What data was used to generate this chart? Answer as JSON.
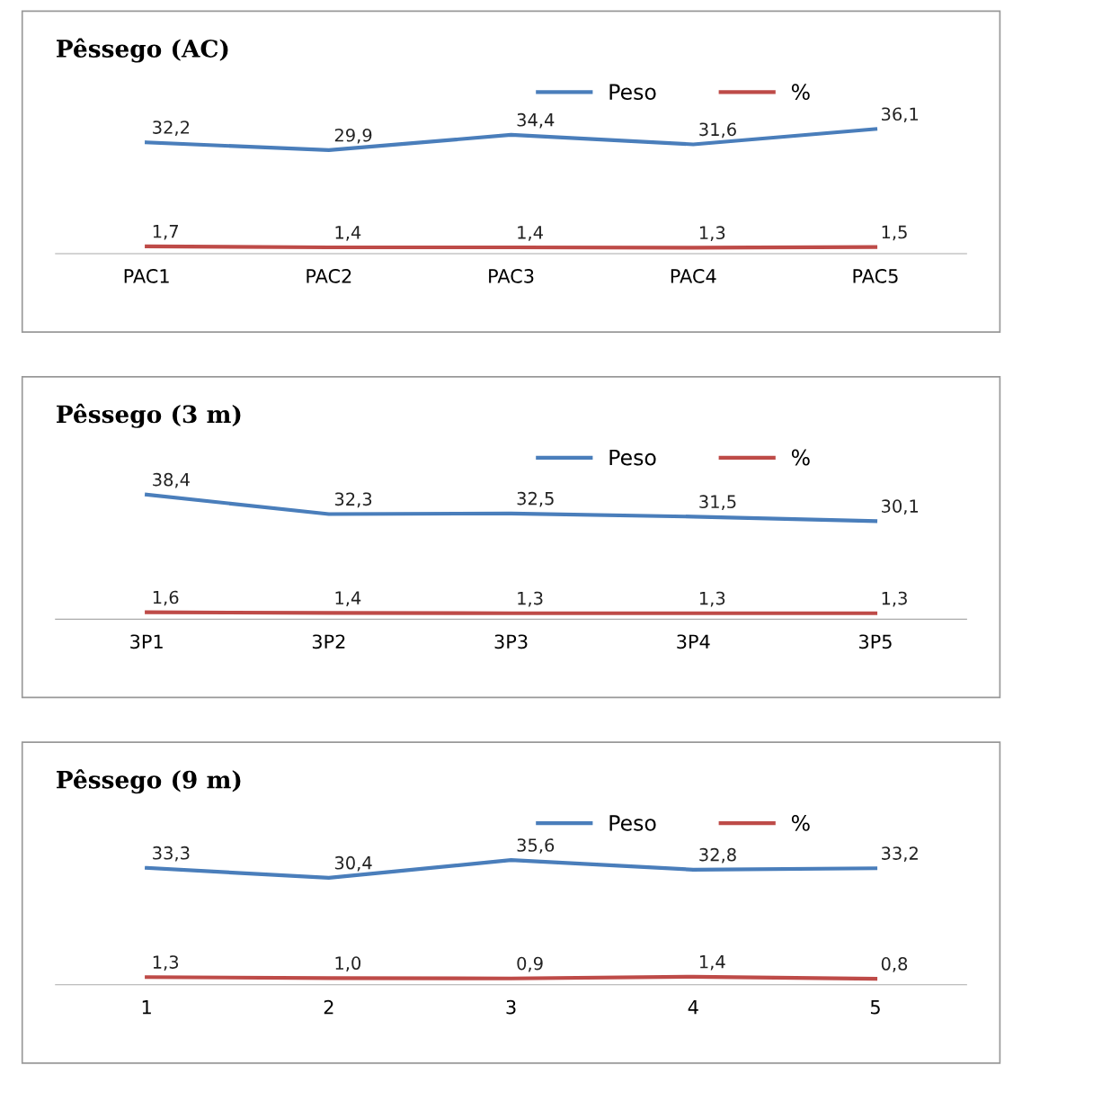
{
  "chart_data": [
    {
      "type": "line",
      "title": "Pêssego (AC)",
      "categories": [
        "PAC1",
        "PAC2",
        "PAC3",
        "PAC4",
        "PAC5"
      ],
      "legend": "top right",
      "grid": false,
      "tick_labels": "x",
      "marker": "none",
      "line_style": "solid",
      "series": [
        {
          "name": "Peso",
          "color": "#4a7ebb",
          "values": [
            32.2,
            29.9,
            34.4,
            31.6,
            36.1
          ],
          "value_labels": [
            "32,2",
            "29,9",
            "34,4",
            "31,6",
            "36,1"
          ]
        },
        {
          "name": "%",
          "color": "#be4b48",
          "values": [
            1.7,
            1.4,
            1.4,
            1.3,
            1.5
          ],
          "value_labels": [
            "1,7",
            "1,4",
            "1,4",
            "1,3",
            "1,5"
          ]
        }
      ]
    },
    {
      "type": "line",
      "title": "Pêssego (3 m)",
      "categories": [
        "3P1",
        "3P2",
        "3P3",
        "3P4",
        "3P5"
      ],
      "legend": "top right",
      "grid": false,
      "tick_labels": "x",
      "marker": "none",
      "line_style": "solid",
      "series": [
        {
          "name": "Peso",
          "color": "#4a7ebb",
          "values": [
            38.4,
            32.3,
            32.5,
            31.5,
            30.1
          ],
          "value_labels": [
            "38,4",
            "32,3",
            "32,5",
            "31,5",
            "30,1"
          ]
        },
        {
          "name": "%",
          "color": "#be4b48",
          "values": [
            1.6,
            1.4,
            1.3,
            1.3,
            1.3
          ],
          "value_labels": [
            "1,6",
            "1,4",
            "1,3",
            "1,3",
            "1,3"
          ]
        }
      ]
    },
    {
      "type": "line",
      "title": "Pêssego (9 m)",
      "categories": [
        "1",
        "2",
        "3",
        "4",
        "5"
      ],
      "legend": "top right",
      "grid": false,
      "tick_labels": "x",
      "marker": "none",
      "line_style": "solid",
      "series": [
        {
          "name": "Peso",
          "color": "#4a7ebb",
          "values": [
            33.3,
            30.4,
            35.6,
            32.8,
            33.2
          ],
          "value_labels": [
            "33,3",
            "30,4",
            "35,6",
            "32,8",
            "33,2"
          ]
        },
        {
          "name": "%",
          "color": "#be4b48",
          "values": [
            1.3,
            1.0,
            0.9,
            1.4,
            0.8
          ],
          "value_labels": [
            "1,3",
            "1,0",
            "0,9",
            "1,4",
            "0,8"
          ]
        }
      ]
    }
  ]
}
